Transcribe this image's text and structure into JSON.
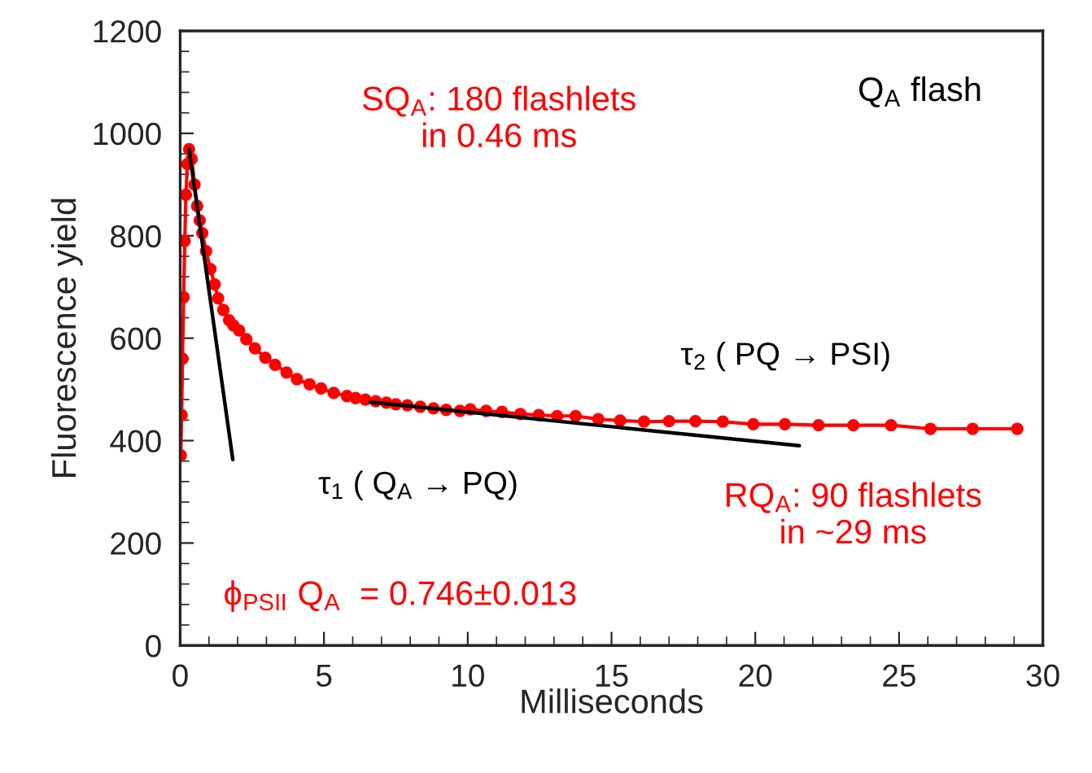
{
  "chart_data": {
    "type": "line",
    "xlabel": "Milliseconds",
    "ylabel": "Fluorescence yield",
    "xlim": [
      0,
      30
    ],
    "ylim": [
      0,
      1200
    ],
    "xticks": [
      0,
      5,
      10,
      15,
      20,
      25,
      30
    ],
    "yticks": [
      0,
      200,
      400,
      600,
      800,
      1000,
      1200
    ],
    "grid": false,
    "marker": "circle",
    "series": [
      {
        "color": "#ff0000",
        "x": [
          0.02,
          0.05,
          0.08,
          0.12,
          0.16,
          0.2,
          0.25,
          0.31,
          0.4,
          0.5,
          0.59,
          0.68,
          0.77,
          0.9,
          1.05,
          1.2,
          1.32,
          1.5,
          1.7,
          1.85,
          2.05,
          2.3,
          2.6,
          2.96,
          3.3,
          3.7,
          4.06,
          4.5,
          4.9,
          5.34,
          5.8,
          6.1,
          6.44,
          6.8,
          7.17,
          7.5,
          7.9,
          8.35,
          8.81,
          9.25,
          9.73,
          10.09,
          10.64,
          11.19,
          11.83,
          12.47,
          13.11,
          13.75,
          14.54,
          15.3,
          16.13,
          17.0,
          17.92,
          18.87,
          19.93,
          21.03,
          22.2,
          23.41,
          24.72,
          26.09,
          27.56,
          29.11
        ],
        "values": [
          371,
          450,
          560,
          680,
          790,
          880,
          940,
          969,
          950,
          900,
          858,
          830,
          805,
          770,
          735,
          705,
          678,
          655,
          635,
          625,
          615,
          598,
          580,
          562,
          548,
          533,
          520,
          510,
          502,
          493,
          487,
          483,
          480,
          477,
          474,
          471,
          469,
          466,
          463,
          460,
          458,
          461,
          458,
          456,
          452,
          450,
          448,
          448,
          442,
          439,
          437,
          438,
          438,
          437,
          432,
          432,
          430,
          430,
          430,
          423,
          423,
          423
        ]
      },
      {
        "type": "line",
        "color": "#000000",
        "marker": "none",
        "x": [
          0.31,
          1.83
        ],
        "values": [
          969,
          363
        ]
      },
      {
        "type": "line",
        "color": "#000000",
        "marker": "none",
        "x": [
          6.62,
          21.53
        ],
        "values": [
          475,
          390
        ]
      }
    ],
    "annotations": [
      "SQ$_{A}$: 180 flashlets\nin 0.46 ms",
      "Q$_{A}$ flash",
      "τ$_{2}$ ( PQ → PSI)",
      "τ$_{1}$ ( Q$_{A}$ → PQ)",
      "RQ$_{A}$: 90 flashlets\nin ~29 ms",
      "ϕ$_{PSII}$ Q$_{A}$  = 0.746±0.013"
    ]
  }
}
